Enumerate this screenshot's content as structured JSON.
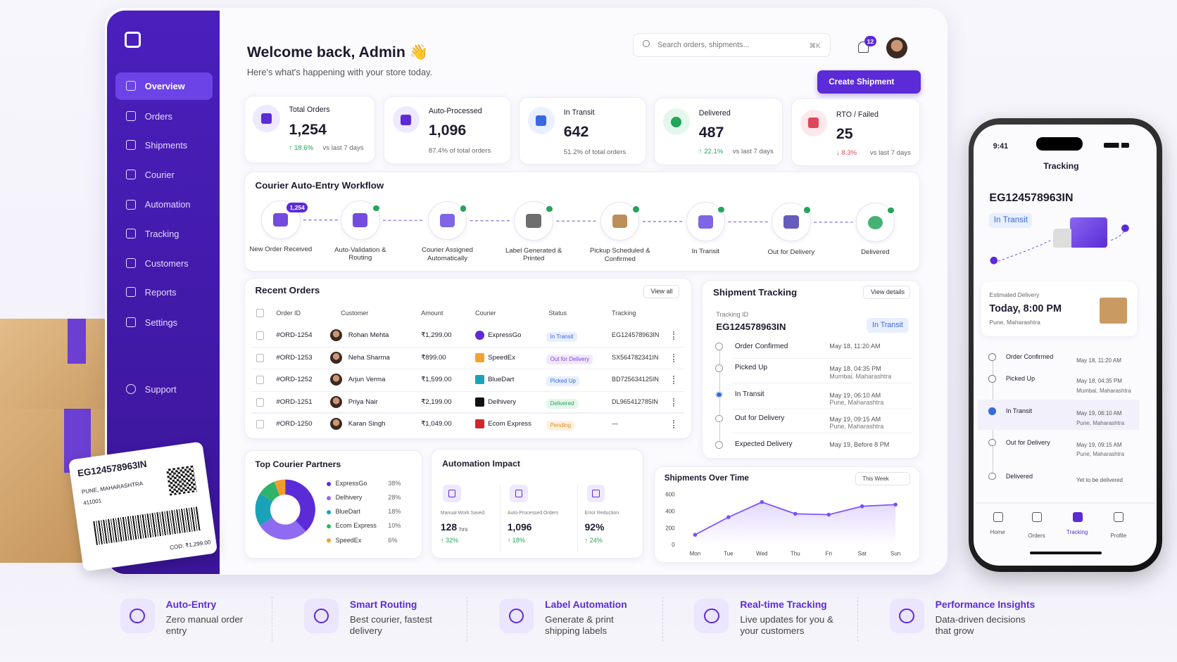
{
  "sidebar": {
    "items": [
      "Overview",
      "Orders",
      "Shipments",
      "Courier",
      "Automation",
      "Tracking",
      "Customers",
      "Reports",
      "Settings"
    ],
    "support": "Support"
  },
  "header": {
    "title": "Welcome back, Admin 👋",
    "subtitle": "Here's what's happening with your store today.",
    "search": "Search orders, shipments...",
    "shortcut": "⌘K",
    "notifications": "12",
    "button": "Create Shipment"
  },
  "kpis": [
    {
      "label": "Total Orders",
      "value": "1,254",
      "change": "↑ 18.6%",
      "note": "vs last 7 days"
    },
    {
      "label": "Auto-Processed",
      "value": "1,096",
      "note": "87.4% of total orders"
    },
    {
      "label": "In Transit",
      "value": "642",
      "note": "51.2% of total orders"
    },
    {
      "label": "Delivered",
      "value": "487",
      "change": "↑ 22.1%",
      "note": "vs last 7 days"
    },
    {
      "label": "RTO / Failed",
      "value": "25",
      "change": "↓ 8.3%",
      "note": "vs last 7 days"
    }
  ],
  "workflow": {
    "title": "Courier Auto-Entry Workflow",
    "badge": "1,254",
    "steps": [
      "New Order Received",
      "Auto-Validation & Routing",
      "Courier Assigned Automatically",
      "Label Generated & Printed",
      "Pickup Scheduled & Confirmed",
      "In Transit",
      "Out for Delivery",
      "Delivered"
    ]
  },
  "orders": {
    "title": "Recent Orders",
    "action": "View all",
    "columns": [
      "Order ID",
      "Customer",
      "Amount",
      "Courier",
      "Status",
      "Tracking"
    ],
    "rows": [
      [
        "#ORD-1254",
        "Rohan Mehta",
        "₹1,299.00",
        "ExpressGo",
        "In Transit",
        "EG124578963IN"
      ],
      [
        "#ORD-1253",
        "Neha Sharma",
        "₹899.00",
        "SpeedEx",
        "Out for Delivery",
        "SX564782341IN"
      ],
      [
        "#ORD-1252",
        "Arjun Verma",
        "₹1,599.00",
        "BlueDart",
        "Picked Up",
        "BD725634125IN"
      ],
      [
        "#ORD-1251",
        "Priya Nair",
        "₹2,199.00",
        "Delhivery",
        "Delivered",
        "DL965412785IN"
      ],
      [
        "#ORD-1250",
        "Karan Singh",
        "₹1,049.00",
        "Ecom Express",
        "Pending",
        "—"
      ]
    ]
  },
  "tracking": {
    "title": "Shipment Tracking",
    "action": "View details",
    "id_label": "Tracking ID",
    "id": "EG124578963IN",
    "status": "In Transit",
    "events": [
      {
        "name": "Order Confirmed",
        "time": "May 18, 11:20 AM"
      },
      {
        "name": "Picked Up",
        "time": "May 18, 04:35 PM",
        "place": "Mumbai, Maharashtra"
      },
      {
        "name": "In Transit",
        "time": "May 19, 06:10 AM",
        "place": "Pune, Maharashtra"
      },
      {
        "name": "Out for Delivery",
        "time": "May 19, 09:15 AM",
        "place": "Pune, Maharashtra"
      },
      {
        "name": "Expected Delivery",
        "time": "May 19, Before 8 PM"
      }
    ]
  },
  "chart_data": [
    {
      "type": "pie",
      "title": "Top Courier Partners",
      "categories": [
        "ExpressGo",
        "Delhivery",
        "BlueDart",
        "Ecom Express",
        "SpeedEx"
      ],
      "values": [
        38,
        28,
        18,
        10,
        6
      ],
      "value_labels": [
        "38%",
        "28%",
        "18%",
        "10%",
        "6%"
      ],
      "colors": [
        "#5b2bd8",
        "#8e6bf0",
        "#1aa3b8",
        "#2fb36b",
        "#f29b2f"
      ]
    },
    {
      "type": "line",
      "title": "Shipments Over Time",
      "period": "This Week",
      "categories": [
        "Mon",
        "Tue",
        "Wed",
        "Thu",
        "Fri",
        "Sat",
        "Sun"
      ],
      "series": [
        {
          "name": "Shipments",
          "color": "#7c4dff",
          "values": [
            120,
            330,
            510,
            370,
            360,
            460,
            480
          ]
        }
      ],
      "ylim": [
        0,
        600
      ],
      "yticks": [
        0,
        200,
        400,
        600
      ],
      "grid": false
    }
  ],
  "automation": {
    "title": "Automation Impact",
    "items": [
      {
        "label": "Manual Work Saved",
        "value": "128",
        "unit": "hrs",
        "change": "↑ 32%"
      },
      {
        "label": "Auto-Processed Orders",
        "value": "1,096",
        "change": "↑ 18%"
      },
      {
        "label": "Error Reduction",
        "value": "92%",
        "change": "↑ 24%"
      }
    ]
  },
  "phone": {
    "time": "9:41",
    "title": "Tracking",
    "id": "EG124578963IN",
    "status": "In Transit",
    "eta_label": "Estimated Delivery",
    "eta": "Today, 8:00 PM",
    "eta_place": "Pune, Maharashtra",
    "events": [
      {
        "name": "Order Confirmed",
        "time": "May 18, 11:20 AM"
      },
      {
        "name": "Picked Up",
        "time": "May 18, 04:35 PM",
        "place": "Mumbai, Maharashtra"
      },
      {
        "name": "In Transit",
        "time": "May 19, 06:10 AM",
        "place": "Pune, Maharashtra"
      },
      {
        "name": "Out for Delivery",
        "time": "May 19, 09:15 AM",
        "place": "Pune, Maharashtra"
      },
      {
        "name": "Delivered",
        "time": "Yet to be delivered"
      }
    ],
    "nav": [
      "Home",
      "Orders",
      "Tracking",
      "Profile"
    ]
  },
  "label": {
    "id": "EG124578963IN",
    "city": "PUNE, MAHARASHTRA",
    "pin": "411001",
    "cod": "COD: ₹1,299.00"
  },
  "features": [
    {
      "title": "Auto-Entry",
      "text": "Zero manual order entry"
    },
    {
      "title": "Smart Routing",
      "text": "Best courier, fastest delivery"
    },
    {
      "title": "Label Automation",
      "text": "Generate & print shipping labels"
    },
    {
      "title": "Real-time Tracking",
      "text": "Live updates for you & your customers"
    },
    {
      "title": "Performance Insights",
      "text": "Data-driven decisions that grow"
    }
  ]
}
